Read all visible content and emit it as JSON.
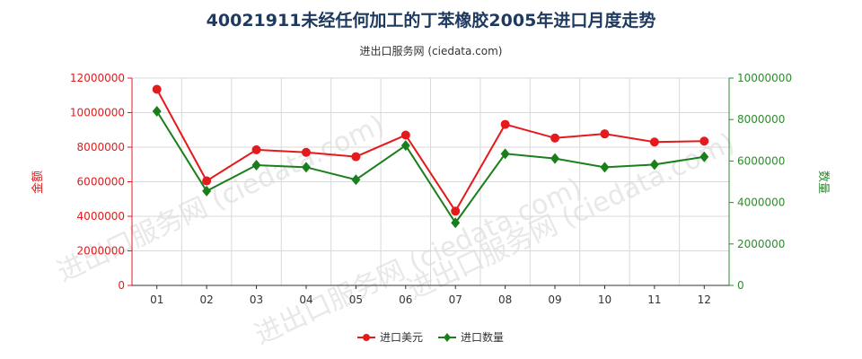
{
  "header": {
    "title": "40021911未经任何加工的丁苯橡胶2005年进口月度走势",
    "subtitle": "进出口服务网 (ciedata.com)"
  },
  "watermark": "进出口服务网 (ciedata.com)",
  "colors": {
    "left_axis": "#e41a1c",
    "right_axis": "#2e8b2e",
    "series_usd": "#e41a1c",
    "series_qty": "#1a7f1a",
    "grid": "#d9d9d9"
  },
  "chart_data": {
    "type": "line",
    "title": "40021911未经任何加工的丁苯橡胶2005年进口月度走势",
    "subtitle": "进出口服务网 (ciedata.com)",
    "categories": [
      "01",
      "02",
      "03",
      "04",
      "05",
      "06",
      "07",
      "08",
      "09",
      "10",
      "11",
      "12"
    ],
    "y_left": {
      "label": "金额",
      "ylim": [
        0,
        12000000
      ],
      "ticks": [
        "0",
        "2000000",
        "4000000",
        "6000000",
        "8000000",
        "10000000",
        "12000000"
      ]
    },
    "y_right": {
      "label": "数量",
      "ylim": [
        0,
        10000000
      ],
      "ticks": [
        "0",
        "2000000",
        "4000000",
        "6000000",
        "8000000",
        "10000000"
      ]
    },
    "series": [
      {
        "name": "进口美元",
        "axis": "left",
        "values": [
          11350000,
          6050000,
          7850000,
          7700000,
          7450000,
          8700000,
          4300000,
          9320000,
          8530000,
          8770000,
          8300000,
          8350000
        ]
      },
      {
        "name": "进口数量",
        "axis": "right",
        "values": [
          8400000,
          4550000,
          5800000,
          5700000,
          5100000,
          6750000,
          3020000,
          6350000,
          6120000,
          5700000,
          5830000,
          6200000
        ]
      }
    ],
    "grid": true,
    "legend": "bottom-center"
  }
}
